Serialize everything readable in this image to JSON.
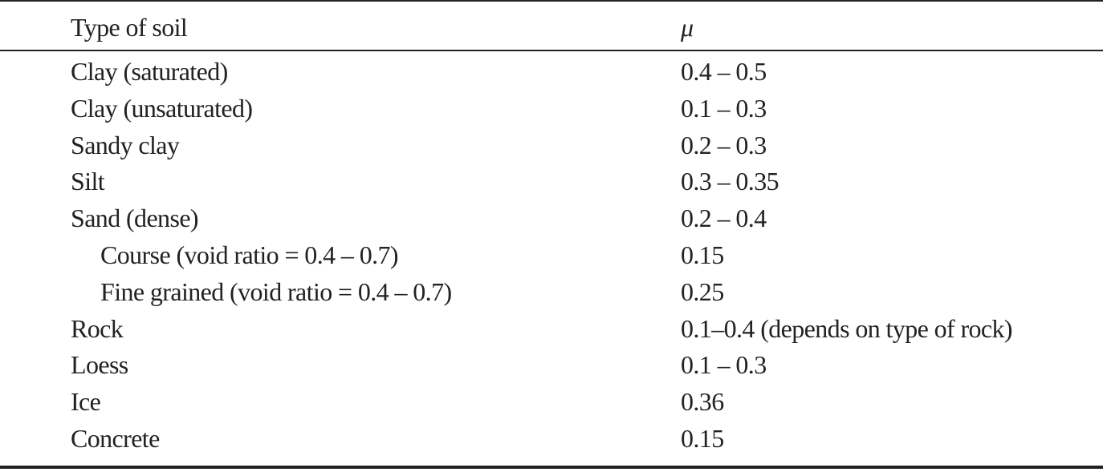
{
  "table": {
    "header": [
      "Type of soil",
      "μ"
    ],
    "rows": [
      [
        "Clay (saturated)",
        "0.4 – 0.5"
      ],
      [
        "Clay (unsaturated)",
        "0.1 – 0.3"
      ],
      [
        "Sandy clay",
        "0.2 – 0.3"
      ],
      [
        "Silt",
        "0.3 – 0.35"
      ],
      [
        "Sand (dense)",
        "0.2 – 0.4"
      ],
      [
        "Course (void ratio = 0.4 – 0.7)",
        "0.15"
      ],
      [
        "Fine grained (void ratio = 0.4 – 0.7)",
        "0.25"
      ],
      [
        "Rock",
        "0.1–0.4 (depends on type of rock)"
      ],
      [
        "Loess",
        "0.1 – 0.3"
      ],
      [
        "Ice",
        "0.36"
      ],
      [
        "Concrete",
        "0.15"
      ]
    ]
  }
}
